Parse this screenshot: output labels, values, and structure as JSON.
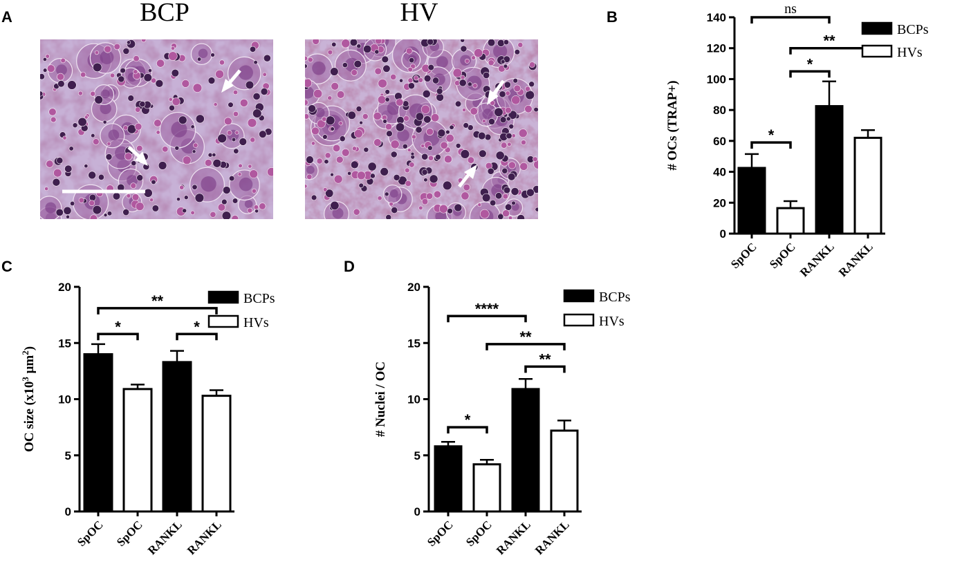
{
  "panels": {
    "A": {
      "label": "A",
      "images": [
        {
          "title": "BCP"
        },
        {
          "title": "HV"
        }
      ]
    }
  },
  "chart_data": [
    {
      "panel": "B",
      "type": "bar",
      "categories": [
        "SpOC",
        "SpOC",
        "RANKL",
        "RANKL"
      ],
      "series_by_bar": [
        "BCPs",
        "HVs",
        "BCPs",
        "HVs"
      ],
      "values": [
        42.5,
        16.5,
        82.5,
        62
      ],
      "errors": [
        9,
        4.5,
        16,
        5
      ],
      "ylabel": "# OCs (TRAP+)",
      "ylim": [
        0,
        140
      ],
      "yticks": [
        0,
        20,
        40,
        60,
        80,
        100,
        120,
        140
      ],
      "legend": [
        {
          "name": "BCPs",
          "fill": "#000000"
        },
        {
          "name": "HVs",
          "fill": "#ffffff"
        }
      ],
      "significance": [
        {
          "from": 0,
          "to": 2,
          "y": 140,
          "label": "ns"
        },
        {
          "from": 1,
          "to": 3,
          "y": 120,
          "label": "**"
        },
        {
          "from": 1,
          "to": 2,
          "y": 105,
          "label": "*"
        },
        {
          "from": 0,
          "to": 1,
          "y": 59,
          "label": "*"
        }
      ]
    },
    {
      "panel": "C",
      "type": "bar",
      "categories": [
        "SpOC",
        "SpOC",
        "RANKL",
        "RANKL"
      ],
      "series_by_bar": [
        "BCPs",
        "HVs",
        "BCPs",
        "HVs"
      ],
      "values": [
        14,
        10.9,
        13.3,
        10.3
      ],
      "errors": [
        0.9,
        0.4,
        1.0,
        0.5
      ],
      "ylabel": "OC size (x10^3 μm^2)",
      "ylim": [
        0,
        20
      ],
      "yticks": [
        0,
        5,
        10,
        15,
        20
      ],
      "legend": [
        {
          "name": "BCPs",
          "fill": "#000000"
        },
        {
          "name": "HVs",
          "fill": "#ffffff"
        }
      ],
      "significance": [
        {
          "from": 0,
          "to": 3,
          "y": 18.1,
          "label": "**"
        },
        {
          "from": 0,
          "to": 1,
          "y": 15.8,
          "label": "*"
        },
        {
          "from": 2,
          "to": 3,
          "y": 15.8,
          "label": "*"
        }
      ]
    },
    {
      "panel": "D",
      "type": "bar",
      "categories": [
        "SpOC",
        "SpOC",
        "RANKL",
        "RANKL"
      ],
      "series_by_bar": [
        "BCPs",
        "HVs",
        "BCPs",
        "HVs"
      ],
      "values": [
        5.8,
        4.2,
        10.9,
        7.2
      ],
      "errors": [
        0.4,
        0.4,
        0.9,
        0.9
      ],
      "ylabel": "# Nuclei / OC",
      "ylim": [
        0,
        20
      ],
      "yticks": [
        0,
        5,
        10,
        15,
        20
      ],
      "legend": [
        {
          "name": "BCPs",
          "fill": "#000000"
        },
        {
          "name": "HVs",
          "fill": "#ffffff"
        }
      ],
      "significance": [
        {
          "from": 0,
          "to": 2,
          "y": 17.4,
          "label": "****"
        },
        {
          "from": 1,
          "to": 3,
          "y": 14.9,
          "label": "**"
        },
        {
          "from": 2,
          "to": 3,
          "y": 12.9,
          "label": "**"
        },
        {
          "from": 0,
          "to": 1,
          "y": 7.5,
          "label": "*"
        }
      ]
    }
  ]
}
